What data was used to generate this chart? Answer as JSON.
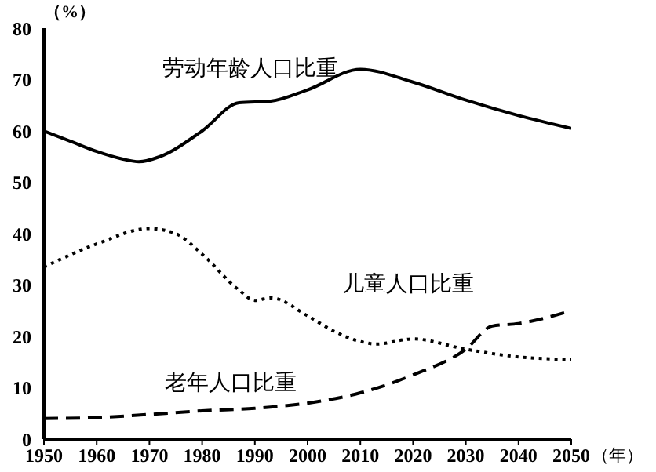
{
  "chart_data": {
    "type": "line",
    "xlabel": "（年）",
    "ylabel": "（%）",
    "xlim": [
      1950,
      2050
    ],
    "ylim": [
      0,
      80
    ],
    "xticks": [
      1950,
      1960,
      1970,
      1980,
      1990,
      2000,
      2010,
      2020,
      2030,
      2040,
      2050
    ],
    "yticks": [
      0,
      10,
      20,
      30,
      40,
      50,
      60,
      70,
      80
    ],
    "marker": "none",
    "series": [
      {
        "name": "劳动年龄人口比重",
        "color": "#000000",
        "line_style": "solid",
        "x": [
          1950,
          1955,
          1960,
          1965,
          1968,
          1972,
          1980,
          1987,
          1993,
          2000,
          2010,
          2020,
          2030,
          2040,
          2050
        ],
        "values": [
          60,
          58,
          56,
          54.5,
          54,
          55,
          60,
          65.5,
          65.8,
          68,
          72,
          69.5,
          66,
          63,
          60.5
        ]
      },
      {
        "name": "儿童人口比重",
        "color": "#000000",
        "line_style": "dotted",
        "x": [
          1950,
          1960,
          1970,
          1975,
          1980,
          1987,
          1990,
          1993,
          2000,
          2005,
          2010,
          2013,
          2020,
          2030,
          2040,
          2050
        ],
        "values": [
          33.5,
          38,
          41,
          40,
          36,
          29,
          27,
          27.5,
          24,
          21,
          19,
          18.5,
          19.5,
          17.5,
          16,
          15.5
        ]
      },
      {
        "name": "老年人口比重",
        "color": "#000000",
        "line_style": "dashed",
        "x": [
          1950,
          1960,
          1970,
          1980,
          1990,
          2000,
          2010,
          2020,
          2030,
          2035,
          2040,
          2050
        ],
        "values": [
          4,
          4.2,
          4.8,
          5.5,
          6,
          7,
          9,
          12.5,
          17.5,
          22,
          22.5,
          25
        ]
      }
    ]
  }
}
